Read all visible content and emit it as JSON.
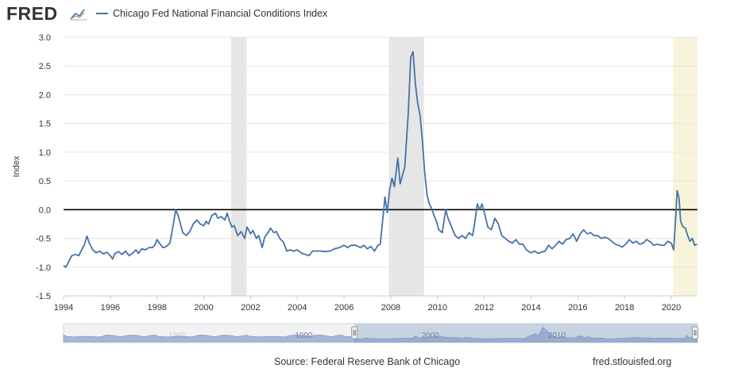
{
  "header": {
    "logo_text": "FRED",
    "logo_icon": "chart-line-icon",
    "legend_label": "Chicago Fed National Financial Conditions Index"
  },
  "footer": {
    "source": "Source: Federal Reserve Bank of Chicago",
    "site": "fred.stlouisfed.org"
  },
  "navigator": {
    "labels": [
      "1990",
      "2000",
      "2010"
    ],
    "left_handle_icon": "drag-handle-icon",
    "right_handle_icon": "drag-handle-icon"
  },
  "colors": {
    "series": "#4572a7",
    "recession": "#e6e6e6",
    "highlight": "#f7f4d9",
    "zero_line": "#000000",
    "grid": "#e6e6e6",
    "navigator_fill": "#a6b8d6",
    "navigator_selected": "#7c9ac6"
  },
  "chart_data": {
    "type": "line",
    "ylabel": "Index",
    "xlabel": "",
    "xlim": [
      1994.0,
      2021.12
    ],
    "ylim": [
      -1.5,
      3.0
    ],
    "x_ticks": [
      1994,
      1996,
      1998,
      2000,
      2002,
      2004,
      2006,
      2008,
      2010,
      2012,
      2014,
      2016,
      2018,
      2020
    ],
    "y_ticks": [
      -1.5,
      -1.0,
      -0.5,
      0.0,
      0.5,
      1.0,
      1.5,
      2.0,
      2.5,
      3.0
    ],
    "y_tick_labels": [
      "-1.5",
      "-1.0",
      "-0.5",
      "0.0",
      "0.5",
      "1.0",
      "1.5",
      "2.0",
      "2.5",
      "3.0"
    ],
    "grid": true,
    "legend": "top-left",
    "reference_line": 0.0,
    "recessions": [
      [
        2001.17,
        2001.83
      ],
      [
        2007.92,
        2009.42
      ]
    ],
    "highlight_band": [
      2020.08,
      2021.12
    ],
    "series": [
      {
        "name": "Chicago Fed National Financial Conditions Index",
        "points": [
          [
            1994.0,
            -0.97
          ],
          [
            1994.1,
            -1.0
          ],
          [
            1994.2,
            -0.92
          ],
          [
            1994.35,
            -0.8
          ],
          [
            1994.5,
            -0.78
          ],
          [
            1994.65,
            -0.8
          ],
          [
            1994.75,
            -0.72
          ],
          [
            1994.9,
            -0.6
          ],
          [
            1995.0,
            -0.46
          ],
          [
            1995.1,
            -0.58
          ],
          [
            1995.25,
            -0.7
          ],
          [
            1995.4,
            -0.75
          ],
          [
            1995.55,
            -0.72
          ],
          [
            1995.7,
            -0.77
          ],
          [
            1995.85,
            -0.74
          ],
          [
            1996.0,
            -0.8
          ],
          [
            1996.1,
            -0.86
          ],
          [
            1996.2,
            -0.76
          ],
          [
            1996.35,
            -0.73
          ],
          [
            1996.5,
            -0.78
          ],
          [
            1996.65,
            -0.72
          ],
          [
            1996.8,
            -0.8
          ],
          [
            1996.95,
            -0.76
          ],
          [
            1997.1,
            -0.7
          ],
          [
            1997.2,
            -0.76
          ],
          [
            1997.35,
            -0.68
          ],
          [
            1997.5,
            -0.7
          ],
          [
            1997.65,
            -0.66
          ],
          [
            1997.8,
            -0.66
          ],
          [
            1997.9,
            -0.62
          ],
          [
            1998.0,
            -0.52
          ],
          [
            1998.1,
            -0.58
          ],
          [
            1998.25,
            -0.66
          ],
          [
            1998.4,
            -0.64
          ],
          [
            1998.55,
            -0.58
          ],
          [
            1998.7,
            -0.25
          ],
          [
            1998.8,
            0.0
          ],
          [
            1998.9,
            -0.1
          ],
          [
            1999.0,
            -0.25
          ],
          [
            1999.1,
            -0.4
          ],
          [
            1999.25,
            -0.45
          ],
          [
            1999.4,
            -0.38
          ],
          [
            1999.55,
            -0.25
          ],
          [
            1999.7,
            -0.18
          ],
          [
            1999.85,
            -0.25
          ],
          [
            2000.0,
            -0.28
          ],
          [
            2000.1,
            -0.2
          ],
          [
            2000.2,
            -0.25
          ],
          [
            2000.35,
            -0.1
          ],
          [
            2000.5,
            -0.06
          ],
          [
            2000.6,
            -0.15
          ],
          [
            2000.75,
            -0.12
          ],
          [
            2000.9,
            -0.18
          ],
          [
            2001.0,
            -0.06
          ],
          [
            2001.1,
            -0.2
          ],
          [
            2001.2,
            -0.3
          ],
          [
            2001.3,
            -0.28
          ],
          [
            2001.45,
            -0.45
          ],
          [
            2001.6,
            -0.38
          ],
          [
            2001.75,
            -0.5
          ],
          [
            2001.85,
            -0.3
          ],
          [
            2002.0,
            -0.42
          ],
          [
            2002.1,
            -0.36
          ],
          [
            2002.25,
            -0.5
          ],
          [
            2002.35,
            -0.45
          ],
          [
            2002.5,
            -0.66
          ],
          [
            2002.6,
            -0.48
          ],
          [
            2002.75,
            -0.4
          ],
          [
            2002.85,
            -0.32
          ],
          [
            2003.0,
            -0.4
          ],
          [
            2003.1,
            -0.38
          ],
          [
            2003.25,
            -0.5
          ],
          [
            2003.4,
            -0.56
          ],
          [
            2003.55,
            -0.72
          ],
          [
            2003.7,
            -0.7
          ],
          [
            2003.85,
            -0.72
          ],
          [
            2004.0,
            -0.7
          ],
          [
            2004.2,
            -0.76
          ],
          [
            2004.35,
            -0.78
          ],
          [
            2004.5,
            -0.8
          ],
          [
            2004.65,
            -0.72
          ],
          [
            2004.8,
            -0.72
          ],
          [
            2005.0,
            -0.72
          ],
          [
            2005.2,
            -0.73
          ],
          [
            2005.4,
            -0.72
          ],
          [
            2005.6,
            -0.68
          ],
          [
            2005.8,
            -0.66
          ],
          [
            2006.0,
            -0.62
          ],
          [
            2006.15,
            -0.66
          ],
          [
            2006.3,
            -0.62
          ],
          [
            2006.5,
            -0.62
          ],
          [
            2006.7,
            -0.66
          ],
          [
            2006.85,
            -0.62
          ],
          [
            2007.0,
            -0.68
          ],
          [
            2007.15,
            -0.64
          ],
          [
            2007.3,
            -0.72
          ],
          [
            2007.45,
            -0.62
          ],
          [
            2007.55,
            -0.6
          ],
          [
            2007.65,
            -0.2
          ],
          [
            2007.75,
            0.22
          ],
          [
            2007.85,
            -0.05
          ],
          [
            2007.95,
            0.35
          ],
          [
            2008.05,
            0.55
          ],
          [
            2008.15,
            0.4
          ],
          [
            2008.3,
            0.9
          ],
          [
            2008.4,
            0.45
          ],
          [
            2008.5,
            0.6
          ],
          [
            2008.6,
            0.75
          ],
          [
            2008.75,
            1.7
          ],
          [
            2008.85,
            2.65
          ],
          [
            2008.95,
            2.75
          ],
          [
            2009.05,
            2.2
          ],
          [
            2009.15,
            1.85
          ],
          [
            2009.25,
            1.65
          ],
          [
            2009.35,
            1.2
          ],
          [
            2009.45,
            0.65
          ],
          [
            2009.55,
            0.25
          ],
          [
            2009.65,
            0.1
          ],
          [
            2009.75,
            0.02
          ],
          [
            2009.85,
            -0.1
          ],
          [
            2009.95,
            -0.2
          ],
          [
            2010.05,
            -0.35
          ],
          [
            2010.2,
            -0.4
          ],
          [
            2010.35,
            0.0
          ],
          [
            2010.45,
            -0.15
          ],
          [
            2010.6,
            -0.3
          ],
          [
            2010.75,
            -0.45
          ],
          [
            2010.9,
            -0.5
          ],
          [
            2011.05,
            -0.45
          ],
          [
            2011.2,
            -0.5
          ],
          [
            2011.35,
            -0.4
          ],
          [
            2011.5,
            -0.45
          ],
          [
            2011.6,
            -0.2
          ],
          [
            2011.7,
            0.1
          ],
          [
            2011.8,
            0.0
          ],
          [
            2011.9,
            0.1
          ],
          [
            2012.0,
            -0.05
          ],
          [
            2012.15,
            -0.3
          ],
          [
            2012.3,
            -0.35
          ],
          [
            2012.45,
            -0.15
          ],
          [
            2012.6,
            -0.25
          ],
          [
            2012.75,
            -0.45
          ],
          [
            2012.9,
            -0.5
          ],
          [
            2013.05,
            -0.55
          ],
          [
            2013.2,
            -0.58
          ],
          [
            2013.35,
            -0.52
          ],
          [
            2013.5,
            -0.6
          ],
          [
            2013.65,
            -0.6
          ],
          [
            2013.8,
            -0.7
          ],
          [
            2014.0,
            -0.75
          ],
          [
            2014.15,
            -0.72
          ],
          [
            2014.3,
            -0.76
          ],
          [
            2014.45,
            -0.74
          ],
          [
            2014.6,
            -0.72
          ],
          [
            2014.75,
            -0.62
          ],
          [
            2014.9,
            -0.68
          ],
          [
            2015.05,
            -0.62
          ],
          [
            2015.2,
            -0.55
          ],
          [
            2015.35,
            -0.6
          ],
          [
            2015.5,
            -0.52
          ],
          [
            2015.65,
            -0.5
          ],
          [
            2015.8,
            -0.42
          ],
          [
            2015.95,
            -0.55
          ],
          [
            2016.1,
            -0.42
          ],
          [
            2016.25,
            -0.35
          ],
          [
            2016.4,
            -0.42
          ],
          [
            2016.55,
            -0.4
          ],
          [
            2016.7,
            -0.45
          ],
          [
            2016.85,
            -0.45
          ],
          [
            2017.0,
            -0.5
          ],
          [
            2017.15,
            -0.48
          ],
          [
            2017.3,
            -0.5
          ],
          [
            2017.45,
            -0.55
          ],
          [
            2017.6,
            -0.6
          ],
          [
            2017.75,
            -0.62
          ],
          [
            2017.9,
            -0.65
          ],
          [
            2018.05,
            -0.6
          ],
          [
            2018.2,
            -0.52
          ],
          [
            2018.35,
            -0.58
          ],
          [
            2018.5,
            -0.55
          ],
          [
            2018.65,
            -0.6
          ],
          [
            2018.8,
            -0.58
          ],
          [
            2018.95,
            -0.52
          ],
          [
            2019.1,
            -0.56
          ],
          [
            2019.25,
            -0.62
          ],
          [
            2019.4,
            -0.6
          ],
          [
            2019.55,
            -0.62
          ],
          [
            2019.7,
            -0.62
          ],
          [
            2019.85,
            -0.55
          ],
          [
            2020.0,
            -0.58
          ],
          [
            2020.1,
            -0.7
          ],
          [
            2020.18,
            -0.2
          ],
          [
            2020.25,
            0.33
          ],
          [
            2020.33,
            0.2
          ],
          [
            2020.4,
            -0.2
          ],
          [
            2020.5,
            -0.3
          ],
          [
            2020.6,
            -0.32
          ],
          [
            2020.7,
            -0.45
          ],
          [
            2020.8,
            -0.55
          ],
          [
            2020.9,
            -0.5
          ],
          [
            2021.0,
            -0.62
          ],
          [
            2021.1,
            -0.6
          ]
        ]
      }
    ]
  }
}
